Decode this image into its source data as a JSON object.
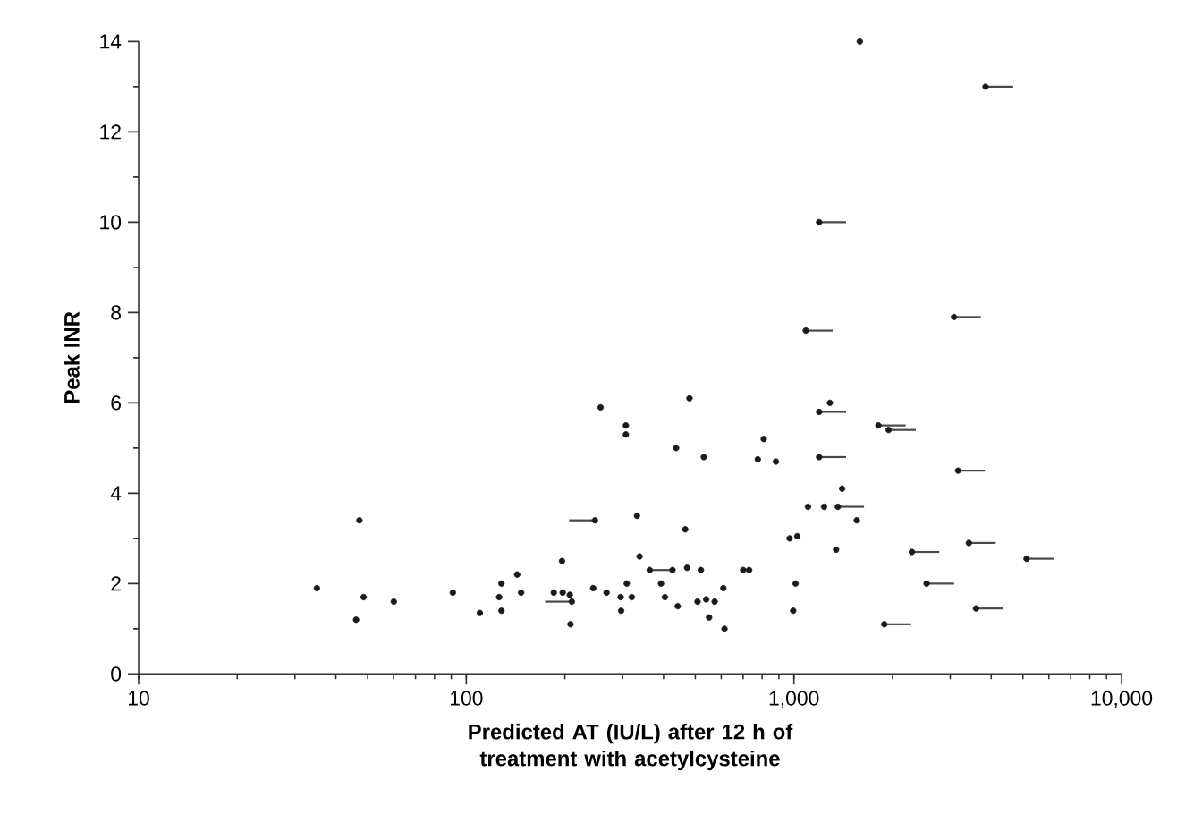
{
  "chart_data": {
    "type": "scatter",
    "xlabel": "Predicted AT (IU/L) after 12 h of treatment with acetylcysteine",
    "ylabel": "Peak INR",
    "log": "x",
    "grid": false,
    "marker": "circle",
    "color": "#1a1a1a",
    "xlim": [
      10,
      10000
    ],
    "ylim": [
      0,
      14
    ],
    "xticks": [
      {
        "value": 10,
        "label": "10"
      },
      {
        "value": 100,
        "label": "100"
      },
      {
        "value": 1000,
        "label": "1,000"
      },
      {
        "value": 10000,
        "label": "10,000"
      }
    ],
    "yticks": [
      0,
      2,
      4,
      6,
      8,
      10,
      12,
      14
    ],
    "x": [
      35,
      47.2,
      48.6,
      46.1,
      60.1,
      91,
      110,
      126,
      128,
      128,
      143,
      147,
      185,
      196,
      197,
      207,
      210,
      208,
      247,
      244,
      257,
      268,
      296,
      297,
      307,
      307,
      309,
      320,
      332,
      338,
      363,
      426,
      393,
      404,
      437,
      442,
      466,
      472,
      480,
      508,
      520,
      531,
      540,
      551,
      573,
      609,
      614,
      700,
      730,
      776,
      809,
      881,
      970,
      995,
      1012,
      1024,
      1087,
      1104,
      1194,
      1194,
      1194,
      1236,
      1288,
      1345,
      1362,
      1403,
      1556,
      1589,
      1811,
      1888,
      1946,
      2291,
      2541,
      3080,
      3170,
      3420,
      3597,
      3846,
      5130
    ],
    "values": [
      1.9,
      3.4,
      1.7,
      1.2,
      1.6,
      1.8,
      1.35,
      1.7,
      2.0,
      1.4,
      2.2,
      1.8,
      1.8,
      2.5,
      1.8,
      1.75,
      1.6,
      1.1,
      3.4,
      1.9,
      5.9,
      1.8,
      1.7,
      1.4,
      5.5,
      5.3,
      2.0,
      1.7,
      3.5,
      2.6,
      2.3,
      2.3,
      2.0,
      1.7,
      5.0,
      1.5,
      3.2,
      2.35,
      6.1,
      1.6,
      2.3,
      4.8,
      1.65,
      1.25,
      1.6,
      1.9,
      1.0,
      2.3,
      2.3,
      4.75,
      5.2,
      4.7,
      3.0,
      1.4,
      2.0,
      3.05,
      7.6,
      3.7,
      10.0,
      5.8,
      4.8,
      3.7,
      6.0,
      2.75,
      3.7,
      4.1,
      3.4,
      14.0,
      5.5,
      1.1,
      5.4,
      2.7,
      2.0,
      7.9,
      4.5,
      2.9,
      1.45,
      13.0,
      2.55
    ],
    "xerrors": [
      null,
      null,
      null,
      null,
      null,
      null,
      null,
      null,
      null,
      null,
      null,
      null,
      null,
      null,
      null,
      null,
      [
        174,
        210
      ],
      null,
      [
        206,
        247
      ],
      null,
      null,
      null,
      null,
      null,
      null,
      null,
      null,
      null,
      null,
      null,
      [
        363,
        426
      ],
      null,
      null,
      null,
      null,
      null,
      null,
      null,
      null,
      null,
      null,
      null,
      null,
      null,
      null,
      null,
      null,
      null,
      null,
      null,
      null,
      null,
      null,
      null,
      null,
      null,
      [
        1087,
        1313
      ],
      null,
      [
        1194,
        1443
      ],
      [
        1194,
        1443
      ],
      [
        1194,
        1443
      ],
      null,
      null,
      null,
      [
        1362,
        1637
      ],
      null,
      null,
      null,
      [
        1811,
        2195
      ],
      [
        1888,
        2280
      ],
      [
        1946,
        2355
      ],
      [
        2291,
        2776
      ],
      [
        2541,
        3083
      ],
      [
        3080,
        3720
      ],
      [
        3170,
        3830
      ],
      [
        3420,
        4130
      ],
      [
        3597,
        4350
      ],
      [
        3846,
        4670
      ],
      [
        5130,
        6220
      ]
    ]
  }
}
